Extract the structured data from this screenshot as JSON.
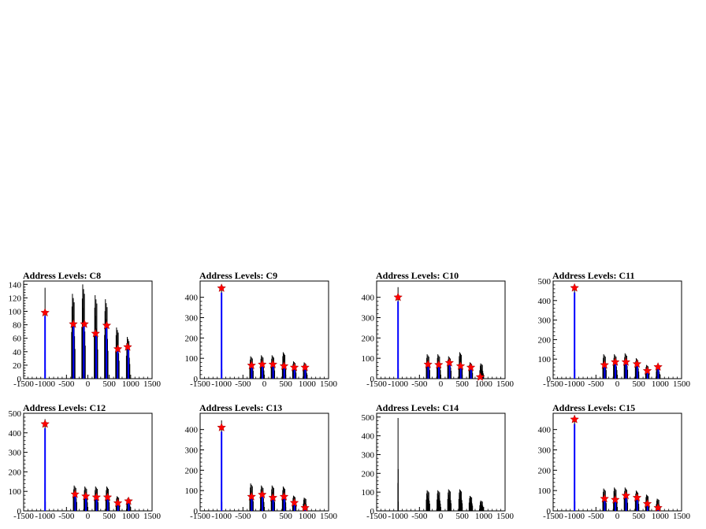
{
  "figure": {
    "panels": [
      {
        "title": "Address Levels: C8"
      },
      {
        "title": "Address Levels: C9"
      },
      {
        "title": "Address Levels: C10"
      },
      {
        "title": "Address Levels: C11"
      },
      {
        "title": "Address Levels: C12"
      },
      {
        "title": "Address Levels: C13"
      },
      {
        "title": "Address Levels: C14"
      },
      {
        "title": "Address Levels: C15"
      }
    ]
  },
  "colors": {
    "histogram": "#000000",
    "fit": "#0000ff",
    "marker": "#ff0000",
    "background": "#ffffff"
  },
  "chart_data": [
    {
      "type": "bar",
      "title": "Address Levels: C8",
      "xlim": [
        -1500,
        1500
      ],
      "ylim": [
        0,
        145
      ],
      "xticks": [
        -1500,
        -1000,
        -500,
        0,
        500,
        1000,
        1500
      ],
      "yticks": [
        0,
        20,
        40,
        60,
        80,
        100,
        120,
        140
      ],
      "peaks": [
        {
          "x": -1000,
          "y": 135
        },
        {
          "x": -340,
          "y": 126
        },
        {
          "x": -100,
          "y": 140
        },
        {
          "x": 190,
          "y": 124
        },
        {
          "x": 430,
          "y": 118
        },
        {
          "x": 690,
          "y": 76
        },
        {
          "x": 940,
          "y": 62
        }
      ],
      "markers": [
        {
          "x": -1000,
          "y": 98
        },
        {
          "x": -340,
          "y": 81
        },
        {
          "x": -80,
          "y": 81
        },
        {
          "x": 180,
          "y": 67
        },
        {
          "x": 440,
          "y": 79
        },
        {
          "x": 700,
          "y": 44
        },
        {
          "x": 930,
          "y": 47
        }
      ]
    },
    {
      "type": "bar",
      "title": "Address Levels: C9",
      "xlim": [
        -1500,
        1500
      ],
      "ylim": [
        0,
        480
      ],
      "xticks": [
        -1500,
        -1000,
        -500,
        0,
        500,
        1000,
        1500
      ],
      "yticks": [
        0,
        100,
        200,
        300,
        400
      ],
      "peaks": [
        {
          "x": -1000,
          "y": 455
        },
        {
          "x": -300,
          "y": 110
        },
        {
          "x": -50,
          "y": 115
        },
        {
          "x": 200,
          "y": 115
        },
        {
          "x": 460,
          "y": 130
        },
        {
          "x": 700,
          "y": 85
        },
        {
          "x": 950,
          "y": 80
        }
      ],
      "markers": [
        {
          "x": -1000,
          "y": 445
        },
        {
          "x": -300,
          "y": 65
        },
        {
          "x": -50,
          "y": 70
        },
        {
          "x": 200,
          "y": 70
        },
        {
          "x": 460,
          "y": 62
        },
        {
          "x": 700,
          "y": 55
        },
        {
          "x": 950,
          "y": 55
        }
      ]
    },
    {
      "type": "bar",
      "title": "Address Levels: C10",
      "xlim": [
        -1500,
        1500
      ],
      "ylim": [
        0,
        480
      ],
      "xticks": [
        -1500,
        -1000,
        -500,
        0,
        500,
        1000,
        1500
      ],
      "yticks": [
        0,
        100,
        200,
        300,
        400
      ],
      "peaks": [
        {
          "x": -1000,
          "y": 450
        },
        {
          "x": -300,
          "y": 120
        },
        {
          "x": -50,
          "y": 120
        },
        {
          "x": 200,
          "y": 110
        },
        {
          "x": 460,
          "y": 130
        },
        {
          "x": 700,
          "y": 80
        },
        {
          "x": 950,
          "y": 75
        }
      ],
      "markers": [
        {
          "x": -1000,
          "y": 400
        },
        {
          "x": -300,
          "y": 70
        },
        {
          "x": -50,
          "y": 68
        },
        {
          "x": 200,
          "y": 78
        },
        {
          "x": 460,
          "y": 62
        },
        {
          "x": 700,
          "y": 55
        },
        {
          "x": 920,
          "y": 8
        }
      ]
    },
    {
      "type": "bar",
      "title": "Address Levels: C11",
      "xlim": [
        -1500,
        1500
      ],
      "ylim": [
        0,
        500
      ],
      "xticks": [
        -1500,
        -1000,
        -500,
        0,
        500,
        1000,
        1500
      ],
      "yticks": [
        0,
        100,
        200,
        300,
        400,
        500
      ],
      "peaks": [
        {
          "x": -1000,
          "y": 480
        },
        {
          "x": -300,
          "y": 125
        },
        {
          "x": -50,
          "y": 125
        },
        {
          "x": 200,
          "y": 130
        },
        {
          "x": 460,
          "y": 105
        },
        {
          "x": 700,
          "y": 70
        },
        {
          "x": 950,
          "y": 70
        }
      ],
      "markers": [
        {
          "x": -1000,
          "y": 465
        },
        {
          "x": -300,
          "y": 70
        },
        {
          "x": -50,
          "y": 85
        },
        {
          "x": 200,
          "y": 85
        },
        {
          "x": 460,
          "y": 75
        },
        {
          "x": 700,
          "y": 40
        },
        {
          "x": 950,
          "y": 60
        }
      ]
    },
    {
      "type": "bar",
      "title": "Address Levels: C12",
      "xlim": [
        -1500,
        1500
      ],
      "ylim": [
        0,
        500
      ],
      "xticks": [
        -1500,
        -1000,
        -500,
        0,
        500,
        1000,
        1500
      ],
      "yticks": [
        0,
        100,
        200,
        300,
        400,
        500
      ],
      "peaks": [
        {
          "x": -1000,
          "y": 470
        },
        {
          "x": -300,
          "y": 130
        },
        {
          "x": -50,
          "y": 125
        },
        {
          "x": 200,
          "y": 125
        },
        {
          "x": 460,
          "y": 125
        },
        {
          "x": 700,
          "y": 75
        },
        {
          "x": 950,
          "y": 65
        }
      ],
      "markers": [
        {
          "x": -1000,
          "y": 445
        },
        {
          "x": -300,
          "y": 85
        },
        {
          "x": -50,
          "y": 75
        },
        {
          "x": 200,
          "y": 70
        },
        {
          "x": 460,
          "y": 70
        },
        {
          "x": 700,
          "y": 40
        },
        {
          "x": 950,
          "y": 50
        }
      ]
    },
    {
      "type": "bar",
      "title": "Address Levels: C13",
      "xlim": [
        -1500,
        1500
      ],
      "ylim": [
        0,
        480
      ],
      "xticks": [
        -1500,
        -1000,
        -500,
        0,
        500,
        1000,
        1500
      ],
      "yticks": [
        0,
        100,
        200,
        300,
        400
      ],
      "peaks": [
        {
          "x": -1000,
          "y": 445
        },
        {
          "x": -300,
          "y": 135
        },
        {
          "x": -50,
          "y": 125
        },
        {
          "x": 200,
          "y": 125
        },
        {
          "x": 460,
          "y": 120
        },
        {
          "x": 700,
          "y": 75
        },
        {
          "x": 950,
          "y": 65
        }
      ],
      "markers": [
        {
          "x": -1000,
          "y": 410
        },
        {
          "x": -300,
          "y": 70
        },
        {
          "x": -50,
          "y": 80
        },
        {
          "x": 200,
          "y": 65
        },
        {
          "x": 460,
          "y": 70
        },
        {
          "x": 700,
          "y": 40
        },
        {
          "x": 950,
          "y": 15
        }
      ]
    },
    {
      "type": "bar",
      "title": "Address Levels: C14",
      "xlim": [
        -1500,
        1500
      ],
      "ylim": [
        0,
        520
      ],
      "xticks": [
        -1500,
        -1000,
        -500,
        0,
        500,
        1000,
        1500
      ],
      "yticks": [
        0,
        100,
        200,
        300,
        400,
        500
      ],
      "peaks": [
        {
          "x": -1000,
          "y": 495
        },
        {
          "x": -300,
          "y": 110
        },
        {
          "x": -50,
          "y": 110
        },
        {
          "x": 200,
          "y": 115
        },
        {
          "x": 460,
          "y": 115
        },
        {
          "x": 700,
          "y": 80
        },
        {
          "x": 950,
          "y": 55
        }
      ],
      "markers": []
    },
    {
      "type": "bar",
      "title": "Address Levels: C15",
      "xlim": [
        -1500,
        1500
      ],
      "ylim": [
        0,
        480
      ],
      "xticks": [
        -1500,
        -1000,
        -500,
        0,
        500,
        1000,
        1500
      ],
      "yticks": [
        0,
        100,
        200,
        300,
        400
      ],
      "peaks": [
        {
          "x": -1000,
          "y": 470
        },
        {
          "x": -300,
          "y": 110
        },
        {
          "x": -50,
          "y": 115
        },
        {
          "x": 200,
          "y": 115
        },
        {
          "x": 460,
          "y": 100
        },
        {
          "x": 700,
          "y": 80
        },
        {
          "x": 950,
          "y": 60
        }
      ],
      "markers": [
        {
          "x": -1000,
          "y": 450
        },
        {
          "x": -300,
          "y": 60
        },
        {
          "x": -50,
          "y": 55
        },
        {
          "x": 200,
          "y": 75
        },
        {
          "x": 460,
          "y": 65
        },
        {
          "x": 700,
          "y": 35
        },
        {
          "x": 950,
          "y": 15
        }
      ]
    }
  ]
}
